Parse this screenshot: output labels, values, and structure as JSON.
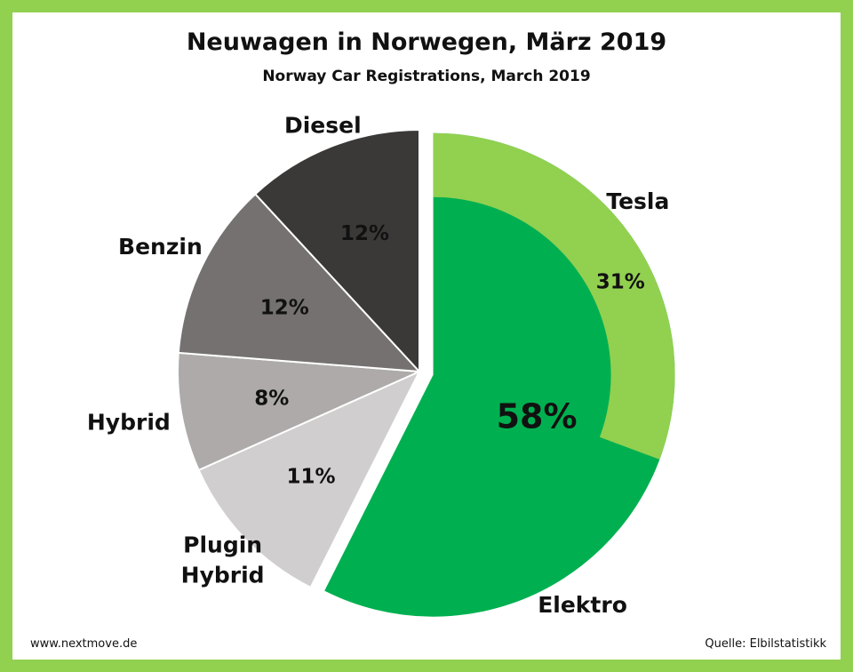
{
  "chart_data": {
    "type": "pie",
    "title": "Neuwagen in Norwegen, März 2019",
    "subtitle": "Norway Car Registrations, March 2019",
    "categories": [
      "Elektro",
      "Tesla",
      "Plugin Hybrid",
      "Hybrid",
      "Benzin",
      "Diesel"
    ],
    "values": [
      58,
      31,
      11,
      8,
      12,
      12
    ],
    "value_labels": [
      "58%",
      "31%",
      "11%",
      "8%",
      "12%",
      "12%"
    ],
    "label_lines": [
      [
        "Elektro"
      ],
      [
        "Tesla"
      ],
      [
        "Plugin",
        "Hybrid"
      ],
      [
        "Hybrid"
      ],
      [
        "Benzin"
      ],
      [
        "Diesel"
      ]
    ],
    "note": "Tesla share is shown as an outer ring segment within Elektro",
    "colors": {
      "elektro": "#00b050",
      "tesla": "#92d050",
      "plugin_hybrid": "#d0cece",
      "hybrid": "#aeaaaa",
      "benzin": "#767171",
      "diesel": "#3b3838",
      "frame": "#92d050"
    }
  },
  "footer": {
    "left": "www.nextmove.de",
    "right": "Quelle: Elbilstatistikk"
  }
}
